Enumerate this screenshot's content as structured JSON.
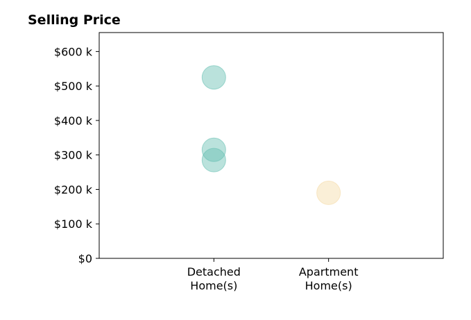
{
  "chart_data": {
    "type": "scatter",
    "title": "Selling Price",
    "xlabel": "",
    "ylabel": "",
    "categories": [
      "Detached\nHome(s)",
      "Apartment\nHome(s)"
    ],
    "y_ticks": [
      "$0",
      "$100 k",
      "$200 k",
      "$300 k",
      "$400 k",
      "$500 k",
      "$600 k"
    ],
    "y_tick_values": [
      0,
      100000,
      200000,
      300000,
      400000,
      500000,
      600000
    ],
    "ylim": [
      0,
      655000
    ],
    "x_range": [
      -1,
      2
    ],
    "grid": false,
    "points": [
      {
        "category": "Detached\nHome(s)",
        "x": 0,
        "y": 525000,
        "color": "#66bfb2"
      },
      {
        "category": "Detached\nHome(s)",
        "x": 0,
        "y": 315000,
        "color": "#66bfb2"
      },
      {
        "category": "Detached\nHome(s)",
        "x": 0,
        "y": 285000,
        "color": "#66bfb2"
      },
      {
        "category": "Apartment\nHome(s)",
        "x": 1,
        "y": 190000,
        "color": "#f5dba6"
      }
    ],
    "marker_alpha": 0.45,
    "marker_edge_alpha": 0.6
  }
}
